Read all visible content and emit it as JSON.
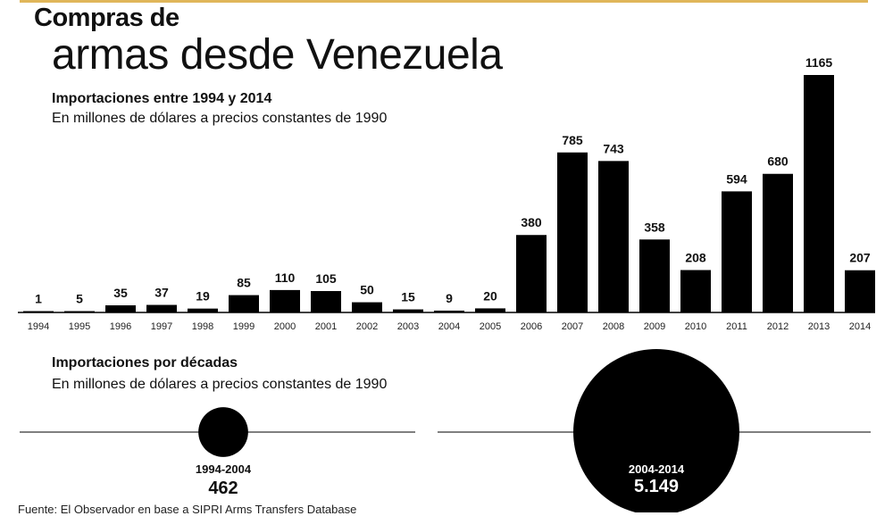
{
  "header": {
    "title_line1": "Compras de",
    "title_line2": "armas desde Venezuela",
    "accent_color": "#e0b65a"
  },
  "section1": {
    "heading": "Importaciones entre 1994 y 2014",
    "subtitle": "En millones de dólares a precios constantes de 1990"
  },
  "section2": {
    "heading": "Importaciones por décadas",
    "subtitle": "En millones de dólares a precios constantes de 1990"
  },
  "source": "Fuente: El Observador en base a SIPRI Arms Transfers Database",
  "chart_data": [
    {
      "type": "bar",
      "title": "Importaciones entre 1994 y 2014",
      "subtitle": "En millones de dólares a precios constantes de 1990",
      "categories": [
        "1994",
        "1995",
        "1996",
        "1997",
        "1998",
        "1999",
        "2000",
        "2001",
        "2002",
        "2003",
        "2004",
        "2005",
        "2006",
        "2007",
        "2008",
        "2009",
        "2010",
        "2011",
        "2012",
        "2013",
        "2014"
      ],
      "values": [
        1,
        5,
        35,
        37,
        19,
        85,
        110,
        105,
        50,
        15,
        9,
        20,
        380,
        785,
        743,
        358,
        208,
        594,
        680,
        1165,
        207
      ],
      "value_labels": [
        "1",
        "5",
        "35",
        "37",
        "19",
        "85",
        "110",
        "105",
        "50",
        "15",
        "9",
        "20",
        "380",
        "785",
        "743",
        "358",
        "208",
        "594",
        "680",
        "1165",
        "207"
      ],
      "xlabel": "",
      "ylabel": "",
      "ylim": [
        0,
        1165
      ],
      "bar_color": "#000000",
      "grid": false
    },
    {
      "type": "bubble",
      "title": "Importaciones por décadas",
      "subtitle": "En millones de dólares a precios constantes de 1990",
      "bubbles": [
        {
          "label": "1994-2004",
          "value_label": "462",
          "value": 462
        },
        {
          "label": "2004-2014",
          "value_label": "5.149",
          "value": 5149
        }
      ],
      "bubble_color": "#000000"
    }
  ]
}
